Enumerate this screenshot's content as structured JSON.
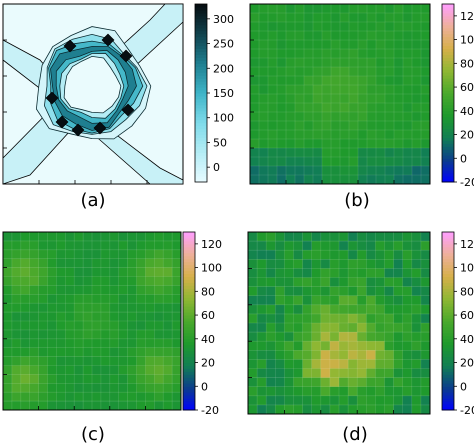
{
  "chart_data": [
    {
      "panel_label": "(a)",
      "type": "contour",
      "colorbar": {
        "ticks": [
          0,
          50,
          100,
          150,
          200,
          250,
          300
        ],
        "range": [
          -30,
          330
        ],
        "colors": [
          "#e7fbff",
          "#b5edf5",
          "#7fdbea",
          "#3fb5c8",
          "#1f7f90",
          "#11424d",
          "#050c10"
        ]
      },
      "grid": false
    },
    {
      "panel_label": "(b)",
      "type": "heatmap",
      "colorbar": {
        "ticks": [
          -20,
          0,
          20,
          40,
          60,
          80,
          100,
          120
        ],
        "range": [
          -20,
          130
        ],
        "colors": [
          "#0000ff",
          "#0b3d8c",
          "#117f54",
          "#1f9a2c",
          "#4aa92c",
          "#8fb733",
          "#d6b04a",
          "#eeb09a",
          "#ff9fff"
        ]
      },
      "grid": true
    },
    {
      "panel_label": "(c)",
      "type": "heatmap",
      "colorbar": {
        "ticks": [
          -20,
          0,
          20,
          40,
          60,
          80,
          100,
          120
        ],
        "range": [
          -20,
          130
        ]
      },
      "grid": true
    },
    {
      "panel_label": "(d)",
      "type": "heatmap",
      "colorbar": {
        "ticks": [
          -20,
          0,
          20,
          40,
          60,
          80,
          100,
          120
        ],
        "range": [
          -20,
          130
        ]
      },
      "grid": true
    }
  ]
}
